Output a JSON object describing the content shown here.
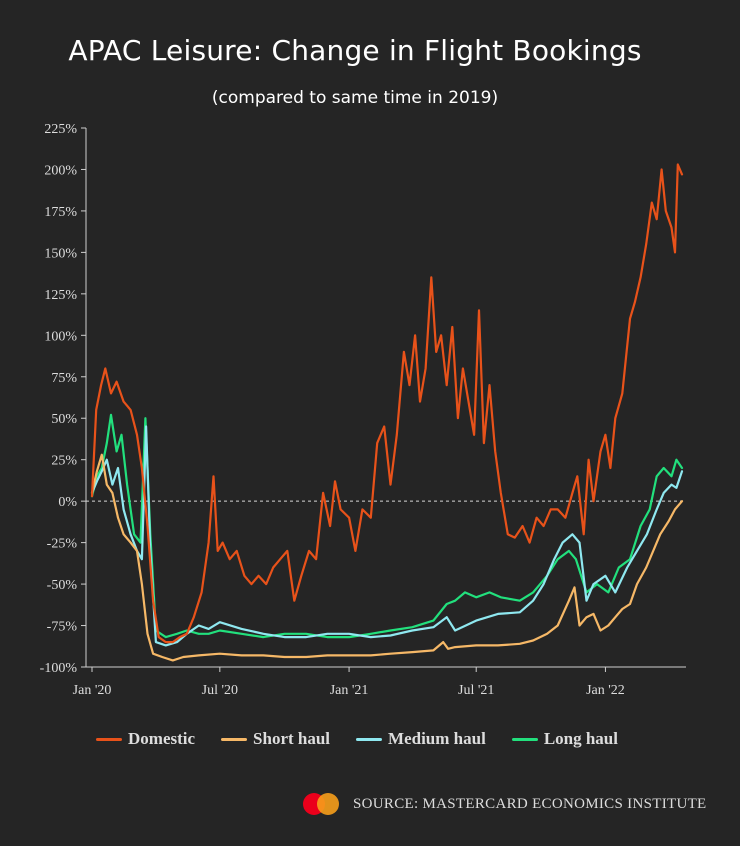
{
  "header": {
    "title": "APAC Leisure: Change in Flight Bookings",
    "subtitle": "(compared to same time in 2019)"
  },
  "source": {
    "logo_icon": "mastercard-logo",
    "text": "SOURCE: MASTERCARD ECONOMICS INSTITUTE"
  },
  "chart_data": {
    "type": "line",
    "title": "APAC Leisure: Change in Flight Bookings",
    "subtitle": "(compared to same time in 2019)",
    "xlabel": "",
    "ylabel": "",
    "x_ticks": [
      "Jan '20",
      "Jul '20",
      "Jan '21",
      "Jul '21",
      "Jan '22"
    ],
    "x_range": [
      "2020-01-01",
      "2022-04-20"
    ],
    "y_ticks": [
      "-100%",
      "-75%",
      "-50%",
      "-25%",
      "0%",
      "25%",
      "50%",
      "75%",
      "100%",
      "125%",
      "150%",
      "175%",
      "200%",
      "225%"
    ],
    "ylim": [
      -100,
      225
    ],
    "reference_line": {
      "y": 0,
      "style": "dashed"
    },
    "grid": false,
    "legend_position": "bottom",
    "series": [
      {
        "name": "Domestic",
        "color": "#e8521a",
        "points": [
          [
            "2020-01-01",
            3
          ],
          [
            "2020-01-07",
            55
          ],
          [
            "2020-01-14",
            70
          ],
          [
            "2020-01-20",
            80
          ],
          [
            "2020-01-28",
            65
          ],
          [
            "2020-02-05",
            72
          ],
          [
            "2020-02-15",
            60
          ],
          [
            "2020-02-25",
            55
          ],
          [
            "2020-03-05",
            40
          ],
          [
            "2020-03-12",
            20
          ],
          [
            "2020-03-20",
            -15
          ],
          [
            "2020-03-28",
            -60
          ],
          [
            "2020-04-05",
            -82
          ],
          [
            "2020-04-15",
            -85
          ],
          [
            "2020-04-25",
            -85
          ],
          [
            "2020-05-05",
            -82
          ],
          [
            "2020-05-15",
            -80
          ],
          [
            "2020-05-25",
            -70
          ],
          [
            "2020-06-05",
            -55
          ],
          [
            "2020-06-15",
            -25
          ],
          [
            "2020-06-22",
            15
          ],
          [
            "2020-06-28",
            -30
          ],
          [
            "2020-07-05",
            -25
          ],
          [
            "2020-07-15",
            -35
          ],
          [
            "2020-07-25",
            -30
          ],
          [
            "2020-08-05",
            -45
          ],
          [
            "2020-08-15",
            -50
          ],
          [
            "2020-08-25",
            -45
          ],
          [
            "2020-09-05",
            -50
          ],
          [
            "2020-09-15",
            -40
          ],
          [
            "2020-09-25",
            -35
          ],
          [
            "2020-10-05",
            -30
          ],
          [
            "2020-10-15",
            -60
          ],
          [
            "2020-10-25",
            -45
          ],
          [
            "2020-11-05",
            -30
          ],
          [
            "2020-11-15",
            -35
          ],
          [
            "2020-11-25",
            5
          ],
          [
            "2020-12-05",
            -15
          ],
          [
            "2020-12-12",
            12
          ],
          [
            "2020-12-20",
            -5
          ],
          [
            "2021-01-01",
            -10
          ],
          [
            "2021-01-10",
            -30
          ],
          [
            "2021-01-20",
            -5
          ],
          [
            "2021-02-01",
            -10
          ],
          [
            "2021-02-10",
            35
          ],
          [
            "2021-02-20",
            45
          ],
          [
            "2021-03-01",
            10
          ],
          [
            "2021-03-10",
            40
          ],
          [
            "2021-03-20",
            90
          ],
          [
            "2021-03-28",
            70
          ],
          [
            "2021-04-05",
            100
          ],
          [
            "2021-04-12",
            60
          ],
          [
            "2021-04-20",
            80
          ],
          [
            "2021-04-28",
            135
          ],
          [
            "2021-05-05",
            90
          ],
          [
            "2021-05-12",
            100
          ],
          [
            "2021-05-20",
            70
          ],
          [
            "2021-05-28",
            105
          ],
          [
            "2021-06-05",
            50
          ],
          [
            "2021-06-12",
            80
          ],
          [
            "2021-06-20",
            60
          ],
          [
            "2021-06-28",
            40
          ],
          [
            "2021-07-05",
            115
          ],
          [
            "2021-07-12",
            35
          ],
          [
            "2021-07-20",
            70
          ],
          [
            "2021-07-28",
            30
          ],
          [
            "2021-08-05",
            5
          ],
          [
            "2021-08-15",
            -20
          ],
          [
            "2021-08-25",
            -22
          ],
          [
            "2021-09-05",
            -15
          ],
          [
            "2021-09-15",
            -25
          ],
          [
            "2021-09-25",
            -10
          ],
          [
            "2021-10-05",
            -15
          ],
          [
            "2021-10-15",
            -5
          ],
          [
            "2021-10-25",
            -5
          ],
          [
            "2021-11-05",
            -10
          ],
          [
            "2021-11-15",
            5
          ],
          [
            "2021-11-22",
            15
          ],
          [
            "2021-12-01",
            -20
          ],
          [
            "2021-12-08",
            25
          ],
          [
            "2021-12-15",
            0
          ],
          [
            "2021-12-25",
            30
          ],
          [
            "2022-01-01",
            40
          ],
          [
            "2022-01-08",
            20
          ],
          [
            "2022-01-15",
            50
          ],
          [
            "2022-01-25",
            65
          ],
          [
            "2022-02-05",
            110
          ],
          [
            "2022-02-12",
            120
          ],
          [
            "2022-02-20",
            135
          ],
          [
            "2022-02-28",
            155
          ],
          [
            "2022-03-08",
            180
          ],
          [
            "2022-03-15",
            170
          ],
          [
            "2022-03-22",
            200
          ],
          [
            "2022-03-28",
            175
          ],
          [
            "2022-04-05",
            165
          ],
          [
            "2022-04-10",
            150
          ],
          [
            "2022-04-14",
            203
          ],
          [
            "2022-04-20",
            197
          ]
        ]
      },
      {
        "name": "Short haul",
        "color": "#f6b867",
        "points": [
          [
            "2020-01-01",
            5
          ],
          [
            "2020-01-08",
            18
          ],
          [
            "2020-01-15",
            28
          ],
          [
            "2020-01-22",
            10
          ],
          [
            "2020-01-30",
            5
          ],
          [
            "2020-02-07",
            -10
          ],
          [
            "2020-02-15",
            -20
          ],
          [
            "2020-02-25",
            -25
          ],
          [
            "2020-03-05",
            -30
          ],
          [
            "2020-03-12",
            -50
          ],
          [
            "2020-03-20",
            -80
          ],
          [
            "2020-03-28",
            -92
          ],
          [
            "2020-04-10",
            -94
          ],
          [
            "2020-04-25",
            -96
          ],
          [
            "2020-05-10",
            -94
          ],
          [
            "2020-06-01",
            -93
          ],
          [
            "2020-07-01",
            -92
          ],
          [
            "2020-08-01",
            -93
          ],
          [
            "2020-09-01",
            -93
          ],
          [
            "2020-10-01",
            -94
          ],
          [
            "2020-11-01",
            -94
          ],
          [
            "2020-12-01",
            -93
          ],
          [
            "2021-01-01",
            -93
          ],
          [
            "2021-02-01",
            -93
          ],
          [
            "2021-03-01",
            -92
          ],
          [
            "2021-04-01",
            -91
          ],
          [
            "2021-05-01",
            -90
          ],
          [
            "2021-05-15",
            -85
          ],
          [
            "2021-05-22",
            -89
          ],
          [
            "2021-06-01",
            -88
          ],
          [
            "2021-07-01",
            -87
          ],
          [
            "2021-08-01",
            -87
          ],
          [
            "2021-09-01",
            -86
          ],
          [
            "2021-09-20",
            -84
          ],
          [
            "2021-10-10",
            -80
          ],
          [
            "2021-10-25",
            -75
          ],
          [
            "2021-11-10",
            -60
          ],
          [
            "2021-11-18",
            -52
          ],
          [
            "2021-11-25",
            -75
          ],
          [
            "2021-12-05",
            -70
          ],
          [
            "2021-12-15",
            -68
          ],
          [
            "2021-12-25",
            -78
          ],
          [
            "2022-01-05",
            -75
          ],
          [
            "2022-01-15",
            -70
          ],
          [
            "2022-01-25",
            -65
          ],
          [
            "2022-02-05",
            -62
          ],
          [
            "2022-02-15",
            -50
          ],
          [
            "2022-02-28",
            -40
          ],
          [
            "2022-03-10",
            -30
          ],
          [
            "2022-03-20",
            -20
          ],
          [
            "2022-04-01",
            -12
          ],
          [
            "2022-04-10",
            -5
          ],
          [
            "2022-04-20",
            0
          ]
        ]
      },
      {
        "name": "Medium haul",
        "color": "#8fe8f0",
        "points": [
          [
            "2020-01-01",
            5
          ],
          [
            "2020-01-08",
            12
          ],
          [
            "2020-01-15",
            18
          ],
          [
            "2020-01-22",
            25
          ],
          [
            "2020-01-30",
            10
          ],
          [
            "2020-02-07",
            20
          ],
          [
            "2020-02-15",
            -5
          ],
          [
            "2020-02-25",
            -20
          ],
          [
            "2020-03-05",
            -30
          ],
          [
            "2020-03-12",
            -35
          ],
          [
            "2020-03-18",
            45
          ],
          [
            "2020-03-24",
            -30
          ],
          [
            "2020-04-01",
            -85
          ],
          [
            "2020-04-15",
            -87
          ],
          [
            "2020-05-01",
            -85
          ],
          [
            "2020-05-15",
            -80
          ],
          [
            "2020-06-01",
            -75
          ],
          [
            "2020-06-15",
            -77
          ],
          [
            "2020-07-01",
            -73
          ],
          [
            "2020-08-01",
            -77
          ],
          [
            "2020-09-01",
            -80
          ],
          [
            "2020-10-01",
            -82
          ],
          [
            "2020-11-01",
            -82
          ],
          [
            "2020-12-01",
            -80
          ],
          [
            "2021-01-01",
            -80
          ],
          [
            "2021-02-01",
            -82
          ],
          [
            "2021-03-01",
            -81
          ],
          [
            "2021-04-01",
            -78
          ],
          [
            "2021-05-01",
            -76
          ],
          [
            "2021-05-20",
            -70
          ],
          [
            "2021-06-01",
            -78
          ],
          [
            "2021-07-01",
            -72
          ],
          [
            "2021-08-01",
            -68
          ],
          [
            "2021-09-01",
            -67
          ],
          [
            "2021-09-20",
            -60
          ],
          [
            "2021-10-05",
            -50
          ],
          [
            "2021-10-20",
            -35
          ],
          [
            "2021-11-01",
            -25
          ],
          [
            "2021-11-15",
            -20
          ],
          [
            "2021-11-25",
            -25
          ],
          [
            "2021-12-05",
            -60
          ],
          [
            "2021-12-15",
            -50
          ],
          [
            "2022-01-01",
            -45
          ],
          [
            "2022-01-15",
            -55
          ],
          [
            "2022-02-01",
            -40
          ],
          [
            "2022-02-15",
            -30
          ],
          [
            "2022-03-01",
            -20
          ],
          [
            "2022-03-15",
            -5
          ],
          [
            "2022-03-25",
            5
          ],
          [
            "2022-04-05",
            10
          ],
          [
            "2022-04-12",
            8
          ],
          [
            "2022-04-20",
            18
          ]
        ]
      },
      {
        "name": "Long haul",
        "color": "#22e07d",
        "points": [
          [
            "2020-01-01",
            3
          ],
          [
            "2020-01-08",
            15
          ],
          [
            "2020-01-15",
            20
          ],
          [
            "2020-01-22",
            35
          ],
          [
            "2020-01-28",
            52
          ],
          [
            "2020-02-05",
            30
          ],
          [
            "2020-02-12",
            40
          ],
          [
            "2020-02-20",
            10
          ],
          [
            "2020-03-01",
            -20
          ],
          [
            "2020-03-10",
            -25
          ],
          [
            "2020-03-17",
            50
          ],
          [
            "2020-03-24",
            -20
          ],
          [
            "2020-04-01",
            -78
          ],
          [
            "2020-04-15",
            -82
          ],
          [
            "2020-05-01",
            -80
          ],
          [
            "2020-05-15",
            -78
          ],
          [
            "2020-06-01",
            -80
          ],
          [
            "2020-06-15",
            -80
          ],
          [
            "2020-07-01",
            -78
          ],
          [
            "2020-08-01",
            -80
          ],
          [
            "2020-09-01",
            -82
          ],
          [
            "2020-10-01",
            -80
          ],
          [
            "2020-11-01",
            -80
          ],
          [
            "2020-12-01",
            -82
          ],
          [
            "2021-01-01",
            -82
          ],
          [
            "2021-02-01",
            -80
          ],
          [
            "2021-03-01",
            -78
          ],
          [
            "2021-04-01",
            -76
          ],
          [
            "2021-05-01",
            -72
          ],
          [
            "2021-05-20",
            -62
          ],
          [
            "2021-06-01",
            -60
          ],
          [
            "2021-06-15",
            -55
          ],
          [
            "2021-07-01",
            -58
          ],
          [
            "2021-07-20",
            -55
          ],
          [
            "2021-08-05",
            -58
          ],
          [
            "2021-09-01",
            -60
          ],
          [
            "2021-09-20",
            -55
          ],
          [
            "2021-10-10",
            -45
          ],
          [
            "2021-10-25",
            -35
          ],
          [
            "2021-11-10",
            -30
          ],
          [
            "2021-11-20",
            -35
          ],
          [
            "2021-12-05",
            -55
          ],
          [
            "2021-12-20",
            -50
          ],
          [
            "2022-01-05",
            -55
          ],
          [
            "2022-01-20",
            -40
          ],
          [
            "2022-02-05",
            -35
          ],
          [
            "2022-02-20",
            -15
          ],
          [
            "2022-03-05",
            -5
          ],
          [
            "2022-03-15",
            15
          ],
          [
            "2022-03-25",
            20
          ],
          [
            "2022-04-05",
            15
          ],
          [
            "2022-04-12",
            25
          ],
          [
            "2022-04-20",
            20
          ]
        ]
      }
    ]
  }
}
